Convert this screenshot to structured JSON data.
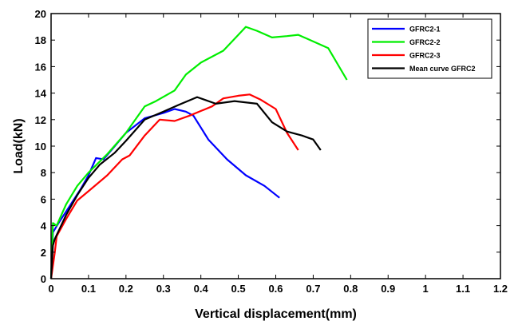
{
  "chart_data": {
    "type": "line",
    "xlabel": "Vertical displacement(mm)",
    "ylabel": "Load(kN)",
    "xlim": [
      0,
      1.2
    ],
    "ylim": [
      0,
      20
    ],
    "x_ticks": [
      0,
      0.1,
      0.2,
      0.3,
      0.4,
      0.5,
      0.6,
      0.7,
      0.8,
      0.9,
      1,
      1.1,
      1.2
    ],
    "y_ticks": [
      0,
      2,
      4,
      6,
      8,
      10,
      12,
      14,
      16,
      18,
      20
    ],
    "grid": false,
    "legend_position": "top-right",
    "series": [
      {
        "name": "GFRC2-1",
        "color": "#0000ff",
        "points": [
          [
            0,
            0
          ],
          [
            0.005,
            3.5
          ],
          [
            0.02,
            4.2
          ],
          [
            0.05,
            5.5
          ],
          [
            0.08,
            6.8
          ],
          [
            0.1,
            7.8
          ],
          [
            0.12,
            9.1
          ],
          [
            0.14,
            9.0
          ],
          [
            0.17,
            10.0
          ],
          [
            0.2,
            11.0
          ],
          [
            0.25,
            12.1
          ],
          [
            0.3,
            12.5
          ],
          [
            0.33,
            12.8
          ],
          [
            0.36,
            12.6
          ],
          [
            0.38,
            12.3
          ],
          [
            0.42,
            10.5
          ],
          [
            0.47,
            9.0
          ],
          [
            0.52,
            7.8
          ],
          [
            0.57,
            7.0
          ],
          [
            0.61,
            6.1
          ]
        ]
      },
      {
        "name": "GFRC2-2",
        "color": "#00ee00",
        "points": [
          [
            0,
            0
          ],
          [
            0.005,
            4.2
          ],
          [
            0.015,
            4.0
          ],
          [
            0.04,
            5.6
          ],
          [
            0.07,
            7.0
          ],
          [
            0.1,
            8.0
          ],
          [
            0.15,
            9.4
          ],
          [
            0.2,
            11.0
          ],
          [
            0.25,
            13.0
          ],
          [
            0.28,
            13.4
          ],
          [
            0.33,
            14.2
          ],
          [
            0.36,
            15.4
          ],
          [
            0.4,
            16.3
          ],
          [
            0.46,
            17.2
          ],
          [
            0.5,
            18.4
          ],
          [
            0.52,
            19.0
          ],
          [
            0.55,
            18.7
          ],
          [
            0.59,
            18.2
          ],
          [
            0.63,
            18.3
          ],
          [
            0.66,
            18.4
          ],
          [
            0.7,
            17.9
          ],
          [
            0.74,
            17.4
          ],
          [
            0.79,
            15.0
          ]
        ]
      },
      {
        "name": "GFRC2-3",
        "color": "#ff0000",
        "points": [
          [
            0,
            0
          ],
          [
            0.01,
            2.0
          ],
          [
            0.015,
            3.2
          ],
          [
            0.04,
            4.5
          ],
          [
            0.07,
            5.9
          ],
          [
            0.1,
            6.6
          ],
          [
            0.15,
            7.8
          ],
          [
            0.19,
            9.0
          ],
          [
            0.21,
            9.3
          ],
          [
            0.25,
            10.8
          ],
          [
            0.29,
            12.0
          ],
          [
            0.33,
            11.9
          ],
          [
            0.37,
            12.3
          ],
          [
            0.43,
            13.0
          ],
          [
            0.46,
            13.6
          ],
          [
            0.5,
            13.8
          ],
          [
            0.53,
            13.9
          ],
          [
            0.56,
            13.5
          ],
          [
            0.6,
            12.8
          ],
          [
            0.63,
            11.0
          ],
          [
            0.66,
            9.7
          ]
        ]
      },
      {
        "name": "Mean curve GFRC2",
        "color": "#000000",
        "points": [
          [
            0,
            0
          ],
          [
            0.005,
            2.5
          ],
          [
            0.01,
            3.0
          ],
          [
            0.04,
            4.8
          ],
          [
            0.07,
            6.3
          ],
          [
            0.1,
            7.6
          ],
          [
            0.13,
            8.6
          ],
          [
            0.17,
            9.5
          ],
          [
            0.2,
            10.4
          ],
          [
            0.25,
            12.0
          ],
          [
            0.3,
            12.6
          ],
          [
            0.34,
            13.1
          ],
          [
            0.39,
            13.7
          ],
          [
            0.44,
            13.2
          ],
          [
            0.49,
            13.4
          ],
          [
            0.55,
            13.2
          ],
          [
            0.59,
            11.8
          ],
          [
            0.63,
            11.1
          ],
          [
            0.67,
            10.8
          ],
          [
            0.7,
            10.5
          ],
          [
            0.72,
            9.7
          ]
        ]
      }
    ]
  }
}
